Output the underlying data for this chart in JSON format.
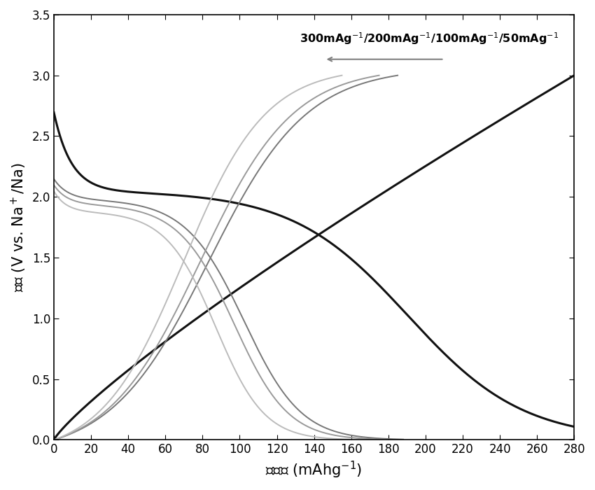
{
  "xlabel": "比容量 (mAhg$^{-1}$)",
  "ylabel": "电压 (V vs. Na$^+$/Na)",
  "xlim": [
    0,
    280
  ],
  "ylim": [
    0,
    3.5
  ],
  "xticks": [
    0,
    20,
    40,
    60,
    80,
    100,
    120,
    140,
    160,
    180,
    200,
    220,
    240,
    260,
    280
  ],
  "yticks": [
    0.0,
    0.5,
    1.0,
    1.5,
    2.0,
    2.5,
    3.0,
    3.5
  ],
  "background_color": "#ffffff",
  "curves": [
    {
      "cap_dis": 280,
      "cap_chg": 280,
      "color": "#111111",
      "lw": 2.2,
      "start_v": 2.7,
      "plateau_v": 2.05,
      "gray_start": 0.08
    },
    {
      "cap_dis": 188,
      "cap_chg": 185,
      "color": "#777777",
      "lw": 1.4,
      "start_v": 2.15,
      "plateau_v": 1.98,
      "gray_start": 0.05
    },
    {
      "cap_dis": 178,
      "cap_chg": 175,
      "color": "#999999",
      "lw": 1.4,
      "start_v": 2.1,
      "plateau_v": 1.94,
      "gray_start": 0.05
    },
    {
      "cap_dis": 160,
      "cap_chg": 155,
      "color": "#bbbbbb",
      "lw": 1.4,
      "start_v": 2.05,
      "plateau_v": 1.88,
      "gray_start": 0.05
    }
  ]
}
